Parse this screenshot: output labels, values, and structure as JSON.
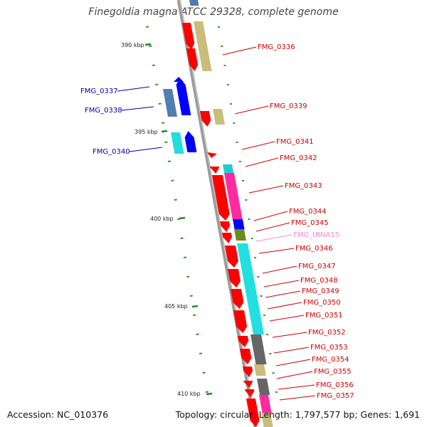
{
  "title": "Finegoldia magna ATCC 29328, complete genome",
  "accession": "Accession: NC_010376",
  "summary": "Topology: circular; Length: 1,797,577 bp; Genes: 1,691",
  "colors": {
    "cds": "#ff0000",
    "reverse_cds": "#0000ff",
    "trna": "#ff88cc",
    "backbone": "#888888"
  },
  "ticks": [
    "390 kbp",
    "395 kbp",
    "400 kbp",
    "405 kbp",
    "410 kbp"
  ],
  "genes": [
    {
      "name": "FMG_0336",
      "color": "#cc0000"
    },
    {
      "name": "FMG_0337",
      "color": "#0000aa"
    },
    {
      "name": "FMG_0338",
      "color": "#0000aa"
    },
    {
      "name": "FMG_0339",
      "color": "#cc0000"
    },
    {
      "name": "FMG_0340",
      "color": "#0000aa"
    },
    {
      "name": "FMG_0341",
      "color": "#cc0000"
    },
    {
      "name": "FMG_0342",
      "color": "#cc0000"
    },
    {
      "name": "FMG_0343",
      "color": "#cc0000"
    },
    {
      "name": "FMG_0344",
      "color": "#cc0000"
    },
    {
      "name": "FMG_0345",
      "color": "#cc0000"
    },
    {
      "name": "FMG_tRNA15",
      "color": "#ff88cc"
    },
    {
      "name": "FMG_0346",
      "color": "#cc0000"
    },
    {
      "name": "FMG_0347",
      "color": "#cc0000"
    },
    {
      "name": "FMG_0348",
      "color": "#cc0000"
    },
    {
      "name": "FMG_0349",
      "color": "#cc0000"
    },
    {
      "name": "FMG_0350",
      "color": "#cc0000"
    },
    {
      "name": "FMG_0351",
      "color": "#cc0000"
    },
    {
      "name": "FMG_0352",
      "color": "#cc0000"
    },
    {
      "name": "FMG_0353",
      "color": "#cc0000"
    },
    {
      "name": "FMG_0354",
      "color": "#cc0000"
    },
    {
      "name": "FMG_0355",
      "color": "#cc0000"
    },
    {
      "name": "FMG_0356",
      "color": "#cc0000"
    },
    {
      "name": "FMG_0357",
      "color": "#cc0000"
    }
  ]
}
